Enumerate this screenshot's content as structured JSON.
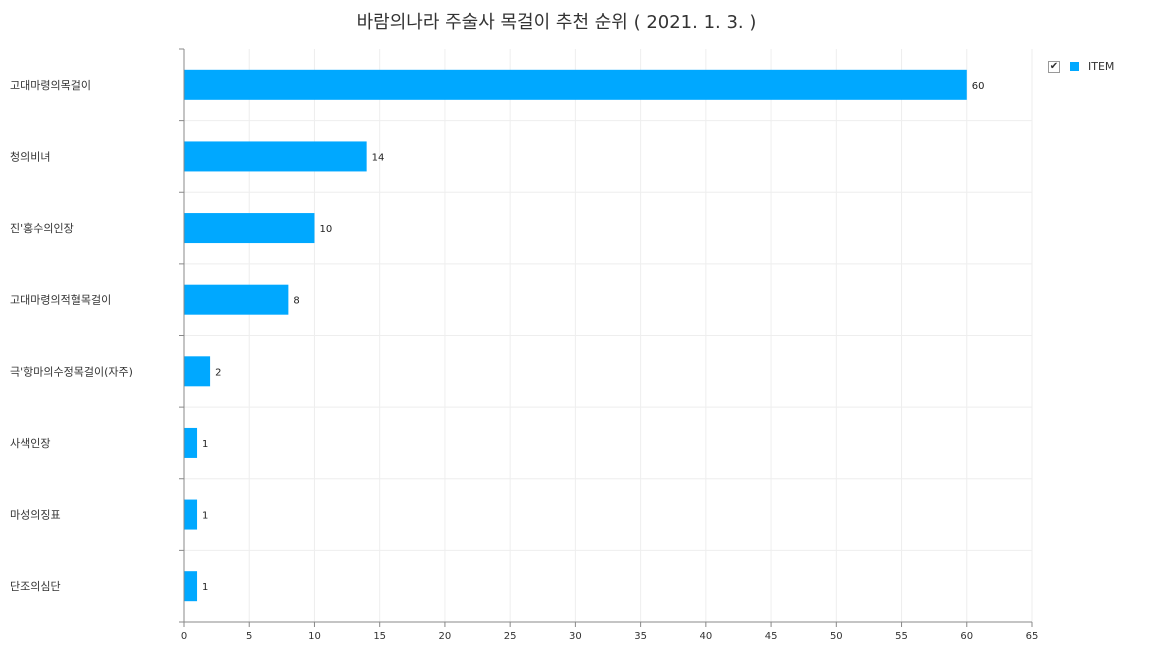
{
  "chart_data": {
    "type": "bar",
    "orientation": "horizontal",
    "title": "바람의나라 주술사 목걸이 추천 순위 ( 2021. 1. 3. )",
    "categories": [
      "고대마령의목걸이",
      "청의비녀",
      "진'홍수의인장",
      "고대마령의적혈목걸이",
      "극'항마의수정목걸이(자주)",
      "사색인장",
      "마성의징표",
      "단조의심단"
    ],
    "series": [
      {
        "name": "ITEM",
        "values": [
          60,
          14,
          10,
          8,
          2,
          1,
          1,
          1
        ],
        "color": "#00A8FF"
      }
    ],
    "xlim": [
      0,
      65
    ],
    "xticks": [
      0,
      5,
      10,
      15,
      20,
      25,
      30,
      35,
      40,
      45,
      50,
      55,
      60,
      65
    ],
    "grid": true,
    "legend_position": "top-right",
    "legend_checked": true,
    "data_labels": true
  },
  "legend": {
    "check_icon": "check-icon",
    "label": "ITEM"
  }
}
